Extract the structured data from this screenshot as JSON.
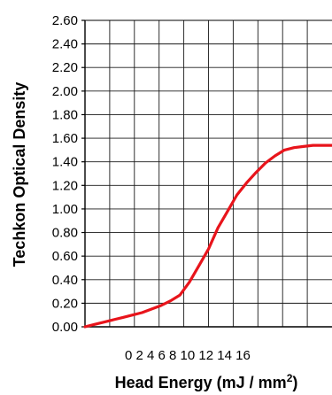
{
  "chart_data": {
    "type": "line",
    "xlabel": "Head Energy (mJ / mm",
    "xlabel_sup": "2",
    "xlabel_close": ")",
    "ylabel": "Techkon Optical Density",
    "ylim": [
      0,
      2.6
    ],
    "xlim": [
      -8,
      18
    ],
    "y_ticks": [
      "0.00",
      "0.20",
      "0.40",
      "0.60",
      "0.80",
      "1.00",
      "1.20",
      "1.40",
      "1.60",
      "1.80",
      "2.00",
      "2.20",
      "2.40",
      "2.60"
    ],
    "x_tick_text": "0 2 4 6 8 10 12 14 16",
    "grid": true,
    "series": [
      {
        "color": "#e8141b",
        "x": [
          -8,
          -7,
          -6,
          -5,
          -4,
          -3,
          -2,
          -1,
          0,
          1,
          2,
          3,
          4,
          5,
          6,
          7,
          8,
          9,
          10,
          11,
          12,
          13,
          14,
          15,
          16,
          17,
          18
        ],
        "y": [
          0.0,
          0.02,
          0.04,
          0.06,
          0.08,
          0.1,
          0.12,
          0.15,
          0.18,
          0.22,
          0.27,
          0.38,
          0.52,
          0.66,
          0.84,
          0.98,
          1.12,
          1.22,
          1.31,
          1.39,
          1.45,
          1.5,
          1.52,
          1.53,
          1.54,
          1.54,
          1.54
        ]
      }
    ]
  }
}
